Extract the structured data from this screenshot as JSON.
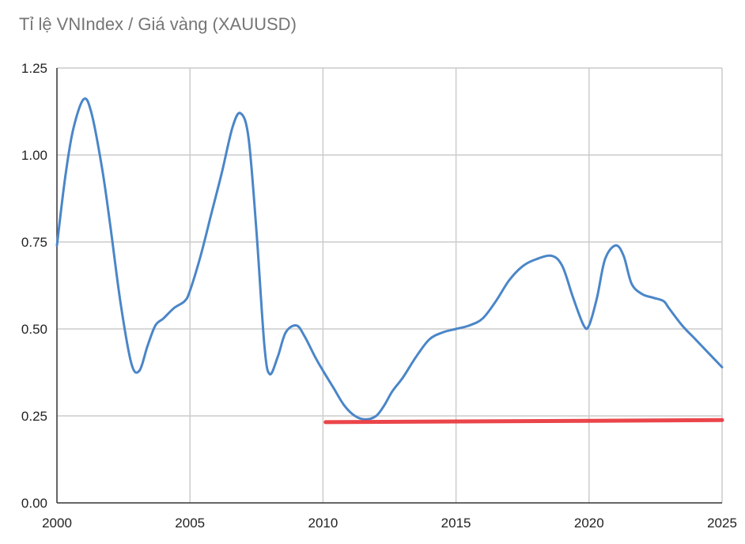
{
  "chart_data": {
    "type": "line",
    "title": "Tỉ lệ VNIndex / Giá vàng (XAUUSD)",
    "xlabel": "",
    "ylabel": "",
    "xlim": [
      2000,
      2025
    ],
    "ylim": [
      0,
      1.25
    ],
    "x_ticks": [
      2000,
      2005,
      2010,
      2015,
      2020,
      2025
    ],
    "x_tick_labels": [
      "2000",
      "2005",
      "2010",
      "2015",
      "2020",
      "2025"
    ],
    "y_ticks": [
      0,
      0.25,
      0.5,
      0.75,
      1.0,
      1.25
    ],
    "y_tick_labels": [
      "0.00",
      "0.25",
      "0.50",
      "0.75",
      "1.00",
      "1.25"
    ],
    "grid": true,
    "legend": "none",
    "series": [
      {
        "color": "#4a86c8",
        "x": [
          2000.0,
          2000.3,
          2000.6,
          2001.0,
          2001.3,
          2001.7,
          2002.0,
          2002.4,
          2002.8,
          2003.1,
          2003.4,
          2003.7,
          2004.0,
          2004.4,
          2004.8,
          2005.0,
          2005.4,
          2005.8,
          2006.2,
          2006.6,
          2006.9,
          2007.2,
          2007.5,
          2007.8,
          2008.0,
          2008.3,
          2008.6,
          2009.0,
          2009.3,
          2009.7,
          2010.0,
          2010.4,
          2010.8,
          2011.2,
          2011.6,
          2012.0,
          2012.3,
          2012.6,
          2013.0,
          2013.5,
          2014.0,
          2014.5,
          2015.0,
          2015.5,
          2016.0,
          2016.5,
          2017.0,
          2017.5,
          2018.0,
          2018.6,
          2019.0,
          2019.4,
          2019.8,
          2020.0,
          2020.3,
          2020.6,
          2021.0,
          2021.3,
          2021.6,
          2022.0,
          2022.4,
          2022.8,
          2023.0,
          2023.5,
          2024.0,
          2024.5,
          2025.0
        ],
        "y": [
          0.74,
          0.93,
          1.07,
          1.16,
          1.12,
          0.96,
          0.8,
          0.57,
          0.4,
          0.38,
          0.45,
          0.51,
          0.53,
          0.56,
          0.58,
          0.61,
          0.71,
          0.83,
          0.95,
          1.08,
          1.12,
          1.05,
          0.78,
          0.45,
          0.37,
          0.42,
          0.49,
          0.51,
          0.48,
          0.42,
          0.38,
          0.33,
          0.28,
          0.25,
          0.24,
          0.25,
          0.28,
          0.32,
          0.36,
          0.42,
          0.47,
          0.49,
          0.5,
          0.51,
          0.53,
          0.58,
          0.64,
          0.68,
          0.7,
          0.71,
          0.68,
          0.59,
          0.51,
          0.51,
          0.59,
          0.7,
          0.74,
          0.71,
          0.63,
          0.6,
          0.59,
          0.58,
          0.56,
          0.51,
          0.47,
          0.43,
          0.39
        ]
      },
      {
        "color": "#e8353b",
        "x": [
          2010.1,
          2025.0
        ],
        "y": [
          0.232,
          0.238
        ]
      }
    ]
  }
}
